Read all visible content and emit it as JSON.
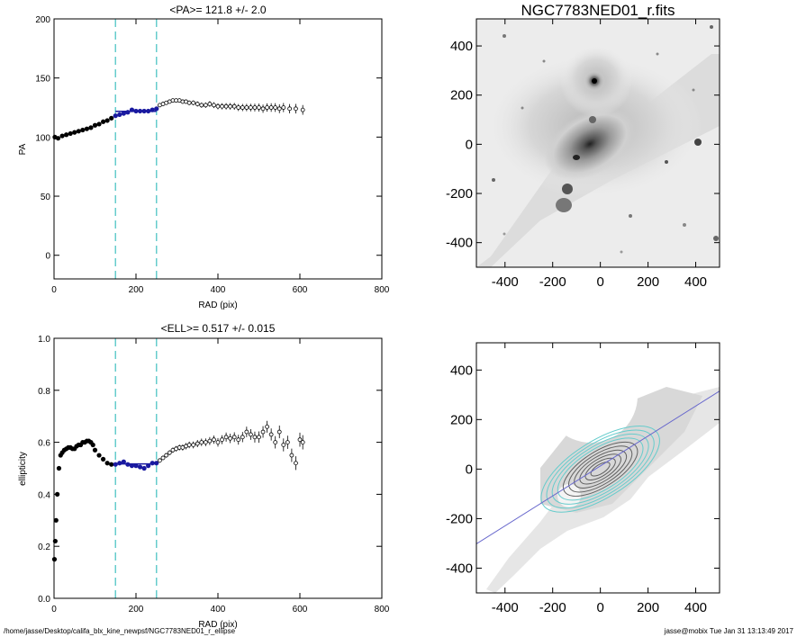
{
  "chart_data": [
    {
      "id": "pa",
      "type": "scatter",
      "title": "<PA>= 121.8 +/-   2.0",
      "xlabel": "RAD (pix)",
      "ylabel": "PA",
      "xlim": [
        0,
        800
      ],
      "ylim": [
        -20,
        200
      ],
      "xticks": [
        "0",
        "200",
        "400",
        "600",
        "800"
      ],
      "xtick_values": [
        0,
        200,
        400,
        600,
        800
      ],
      "yticks": [
        "0",
        "50",
        "100",
        "150",
        "200"
      ],
      "ytick_values": [
        0,
        50,
        100,
        150,
        200
      ],
      "vlines": [
        150,
        250
      ],
      "fit_range": [
        150,
        250
      ],
      "fit_value": 121.8,
      "series": [
        {
          "curve": [
            [
              2,
              100
            ],
            [
              10,
              99
            ],
            [
              20,
              101
            ],
            [
              30,
              102
            ],
            [
              40,
              103
            ],
            [
              50,
              104
            ],
            [
              60,
              105
            ],
            [
              70,
              106
            ],
            [
              80,
              107
            ],
            [
              90,
              108
            ],
            [
              100,
              110
            ],
            [
              110,
              111
            ],
            [
              120,
              113
            ],
            [
              130,
              114
            ],
            [
              140,
              116
            ],
            [
              150,
              118
            ],
            [
              160,
              119
            ],
            [
              170,
              120
            ],
            [
              180,
              121
            ],
            [
              190,
              123
            ],
            [
              200,
              122
            ],
            [
              210,
              122
            ],
            [
              220,
              122
            ],
            [
              230,
              122
            ],
            [
              240,
              123
            ],
            [
              250,
              124
            ]
          ]
        },
        {
          "points": [
            [
              258,
              127
            ],
            [
              266,
              128
            ],
            [
              274,
              129
            ],
            [
              282,
              130
            ],
            [
              290,
              131
            ],
            [
              298,
              131
            ],
            [
              306,
              131
            ],
            [
              314,
              130
            ],
            [
              322,
              130
            ],
            [
              330,
              129
            ],
            [
              340,
              129
            ],
            [
              350,
              128
            ],
            [
              360,
              127
            ],
            [
              370,
              127
            ],
            [
              380,
              128
            ],
            [
              390,
              127
            ],
            [
              400,
              126
            ],
            [
              410,
              126
            ],
            [
              420,
              126
            ],
            [
              430,
              126
            ],
            [
              440,
              126
            ],
            [
              450,
              125
            ],
            [
              460,
              125
            ],
            [
              470,
              125
            ],
            [
              480,
              125
            ],
            [
              490,
              125
            ],
            [
              500,
              125
            ],
            [
              510,
              124
            ],
            [
              520,
              125
            ],
            [
              530,
              125
            ],
            [
              540,
              125
            ],
            [
              550,
              124
            ],
            [
              560,
              125
            ],
            [
              575,
              124
            ],
            [
              590,
              124
            ],
            [
              607,
              123
            ]
          ]
        }
      ]
    },
    {
      "id": "ell",
      "type": "scatter",
      "title": "<ELL>= 0.517 +/-  0.015",
      "xlabel": "RAD (pix)",
      "ylabel": "ellipticity",
      "xlim": [
        0,
        800
      ],
      "ylim": [
        0,
        1
      ],
      "xticks": [
        "0",
        "200",
        "400",
        "600",
        "800"
      ],
      "xtick_values": [
        0,
        200,
        400,
        600,
        800
      ],
      "yticks": [
        "0.0",
        "0.2",
        "0.4",
        "0.6",
        "0.8",
        "1.0"
      ],
      "ytick_values": [
        0,
        0.2,
        0.4,
        0.6,
        0.8,
        1.0
      ],
      "vlines": [
        150,
        250
      ],
      "fit_range": [
        150,
        250
      ],
      "fit_value": 0.517,
      "series": [
        {
          "curve": [
            [
              1,
              0.15
            ],
            [
              3,
              0.22
            ],
            [
              5,
              0.3
            ],
            [
              8,
              0.4
            ],
            [
              12,
              0.5
            ],
            [
              16,
              0.55
            ],
            [
              20,
              0.56
            ],
            [
              25,
              0.57
            ],
            [
              30,
              0.575
            ],
            [
              35,
              0.58
            ],
            [
              40,
              0.58
            ],
            [
              45,
              0.575
            ],
            [
              50,
              0.575
            ],
            [
              55,
              0.585
            ],
            [
              60,
              0.59
            ],
            [
              65,
              0.59
            ],
            [
              70,
              0.6
            ],
            [
              75,
              0.6
            ],
            [
              80,
              0.605
            ],
            [
              85,
              0.605
            ],
            [
              90,
              0.6
            ],
            [
              95,
              0.59
            ],
            [
              100,
              0.57
            ],
            [
              110,
              0.55
            ],
            [
              120,
              0.535
            ],
            [
              130,
              0.52
            ],
            [
              140,
              0.515
            ],
            [
              150,
              0.515
            ],
            [
              160,
              0.52
            ],
            [
              170,
              0.525
            ],
            [
              180,
              0.515
            ],
            [
              190,
              0.51
            ],
            [
              200,
              0.51
            ],
            [
              210,
              0.505
            ],
            [
              220,
              0.5
            ],
            [
              230,
              0.51
            ],
            [
              240,
              0.52
            ],
            [
              250,
              0.52
            ]
          ]
        },
        {
          "points": [
            [
              258,
              0.53
            ],
            [
              266,
              0.54
            ],
            [
              274,
              0.55
            ],
            [
              282,
              0.56
            ],
            [
              290,
              0.57
            ],
            [
              298,
              0.575
            ],
            [
              306,
              0.58
            ],
            [
              314,
              0.58
            ],
            [
              322,
              0.585
            ],
            [
              330,
              0.59
            ],
            [
              340,
              0.59
            ],
            [
              350,
              0.595
            ],
            [
              360,
              0.6
            ],
            [
              370,
              0.6
            ],
            [
              380,
              0.605
            ],
            [
              390,
              0.61
            ],
            [
              400,
              0.6
            ],
            [
              410,
              0.61
            ],
            [
              420,
              0.62
            ],
            [
              430,
              0.615
            ],
            [
              440,
              0.62
            ],
            [
              450,
              0.61
            ],
            [
              460,
              0.62
            ],
            [
              470,
              0.64
            ],
            [
              480,
              0.63
            ],
            [
              490,
              0.62
            ],
            [
              500,
              0.62
            ],
            [
              510,
              0.64
            ],
            [
              520,
              0.66
            ],
            [
              530,
              0.63
            ],
            [
              540,
              0.6
            ],
            [
              550,
              0.64
            ],
            [
              560,
              0.59
            ],
            [
              570,
              0.6
            ],
            [
              580,
              0.55
            ],
            [
              590,
              0.52
            ],
            [
              600,
              0.61
            ],
            [
              607,
              0.6
            ]
          ]
        }
      ]
    },
    {
      "id": "image",
      "type": "heatmap",
      "title": "NGC7783NED01_r.fits",
      "xlim": [
        -520,
        500
      ],
      "ylim": [
        -500,
        510
      ],
      "xticks": [
        "-400",
        "-200",
        "0",
        "200",
        "400"
      ],
      "xtick_values": [
        -400,
        -200,
        0,
        200,
        400
      ],
      "yticks": [
        "-400",
        "-200",
        "0",
        "200",
        "400"
      ],
      "ytick_values": [
        -400,
        -200,
        0,
        200,
        400
      ]
    },
    {
      "id": "isophotes",
      "type": "heatmap",
      "title": "",
      "xlim": [
        -520,
        500
      ],
      "ylim": [
        -500,
        510
      ],
      "xticks": [
        "-400",
        "-200",
        "0",
        "200",
        "400"
      ],
      "xtick_values": [
        -400,
        -200,
        0,
        200,
        400
      ],
      "yticks": [
        "-400",
        "-200",
        "0",
        "200",
        "400"
      ],
      "ytick_values": [
        -400,
        -200,
        0,
        200,
        400
      ],
      "pa_line": [
        [
          -520,
          -302
        ],
        [
          500,
          315
        ]
      ]
    }
  ],
  "colors": {
    "data": "#000000",
    "fit": "#1a1aa0",
    "range_lines": "#66cccc",
    "pa_line": "#6666cc",
    "contours_inner": "#606060",
    "contours_outer": "#66cccc"
  },
  "footer": {
    "path": "/home/jasse/Desktop/califa_blx_kine_newpsf/NGC7783NED01_r_ellipse",
    "stamp": "jasse@mobix  Tue Jan 31 13:13:49 2017"
  }
}
